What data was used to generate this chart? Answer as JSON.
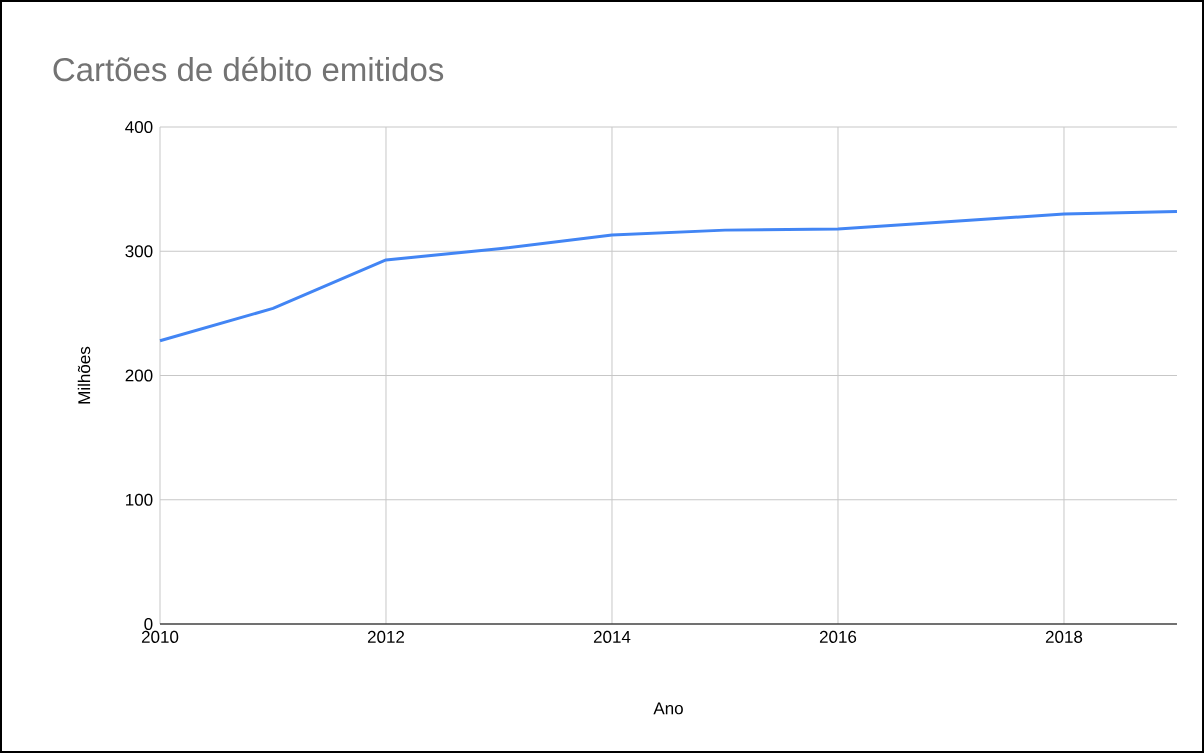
{
  "chart_data": {
    "type": "line",
    "title": "Cartões de débito emitidos",
    "xlabel": "Ano",
    "ylabel": "Milhões",
    "x": [
      2010,
      2011,
      2012,
      2013,
      2014,
      2015,
      2016,
      2017,
      2018,
      2019
    ],
    "values": [
      228,
      254,
      293,
      302,
      313,
      317,
      318,
      324,
      330,
      332
    ],
    "color": "#4285f4",
    "xlim": [
      2010,
      2019
    ],
    "ylim": [
      0,
      400
    ],
    "xticks": [
      2010,
      2012,
      2014,
      2016,
      2018
    ],
    "yticks": [
      0,
      100,
      200,
      300,
      400
    ],
    "grid": true
  }
}
